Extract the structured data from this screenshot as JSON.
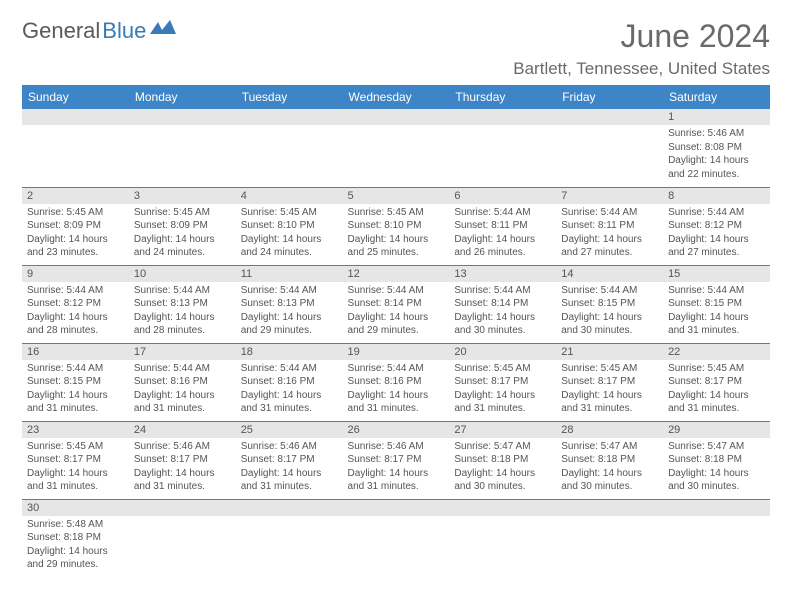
{
  "logo": {
    "text1": "General",
    "text2": "Blue"
  },
  "title": "June 2024",
  "location": "Bartlett, Tennessee, United States",
  "colors": {
    "header_bg": "#3d85c6",
    "header_text": "#ffffff",
    "day_num_bg": "#e6e6e6",
    "cell_border": "#3d85c6",
    "body_text": "#555555",
    "title_text": "#6a6a6a"
  },
  "fonts": {
    "title_size": 32,
    "location_size": 17,
    "weekday_size": 12,
    "daynum_size": 11,
    "body_size": 10
  },
  "weekdays": [
    "Sunday",
    "Monday",
    "Tuesday",
    "Wednesday",
    "Thursday",
    "Friday",
    "Saturday"
  ],
  "weeks": [
    [
      {
        "empty": true
      },
      {
        "empty": true
      },
      {
        "empty": true
      },
      {
        "empty": true
      },
      {
        "empty": true
      },
      {
        "empty": true
      },
      {
        "num": "1",
        "l1": "Sunrise: 5:46 AM",
        "l2": "Sunset: 8:08 PM",
        "l3": "Daylight: 14 hours",
        "l4": "and 22 minutes."
      }
    ],
    [
      {
        "num": "2",
        "l1": "Sunrise: 5:45 AM",
        "l2": "Sunset: 8:09 PM",
        "l3": "Daylight: 14 hours",
        "l4": "and 23 minutes."
      },
      {
        "num": "3",
        "l1": "Sunrise: 5:45 AM",
        "l2": "Sunset: 8:09 PM",
        "l3": "Daylight: 14 hours",
        "l4": "and 24 minutes."
      },
      {
        "num": "4",
        "l1": "Sunrise: 5:45 AM",
        "l2": "Sunset: 8:10 PM",
        "l3": "Daylight: 14 hours",
        "l4": "and 24 minutes."
      },
      {
        "num": "5",
        "l1": "Sunrise: 5:45 AM",
        "l2": "Sunset: 8:10 PM",
        "l3": "Daylight: 14 hours",
        "l4": "and 25 minutes."
      },
      {
        "num": "6",
        "l1": "Sunrise: 5:44 AM",
        "l2": "Sunset: 8:11 PM",
        "l3": "Daylight: 14 hours",
        "l4": "and 26 minutes."
      },
      {
        "num": "7",
        "l1": "Sunrise: 5:44 AM",
        "l2": "Sunset: 8:11 PM",
        "l3": "Daylight: 14 hours",
        "l4": "and 27 minutes."
      },
      {
        "num": "8",
        "l1": "Sunrise: 5:44 AM",
        "l2": "Sunset: 8:12 PM",
        "l3": "Daylight: 14 hours",
        "l4": "and 27 minutes."
      }
    ],
    [
      {
        "num": "9",
        "l1": "Sunrise: 5:44 AM",
        "l2": "Sunset: 8:12 PM",
        "l3": "Daylight: 14 hours",
        "l4": "and 28 minutes."
      },
      {
        "num": "10",
        "l1": "Sunrise: 5:44 AM",
        "l2": "Sunset: 8:13 PM",
        "l3": "Daylight: 14 hours",
        "l4": "and 28 minutes."
      },
      {
        "num": "11",
        "l1": "Sunrise: 5:44 AM",
        "l2": "Sunset: 8:13 PM",
        "l3": "Daylight: 14 hours",
        "l4": "and 29 minutes."
      },
      {
        "num": "12",
        "l1": "Sunrise: 5:44 AM",
        "l2": "Sunset: 8:14 PM",
        "l3": "Daylight: 14 hours",
        "l4": "and 29 minutes."
      },
      {
        "num": "13",
        "l1": "Sunrise: 5:44 AM",
        "l2": "Sunset: 8:14 PM",
        "l3": "Daylight: 14 hours",
        "l4": "and 30 minutes."
      },
      {
        "num": "14",
        "l1": "Sunrise: 5:44 AM",
        "l2": "Sunset: 8:15 PM",
        "l3": "Daylight: 14 hours",
        "l4": "and 30 minutes."
      },
      {
        "num": "15",
        "l1": "Sunrise: 5:44 AM",
        "l2": "Sunset: 8:15 PM",
        "l3": "Daylight: 14 hours",
        "l4": "and 31 minutes."
      }
    ],
    [
      {
        "num": "16",
        "l1": "Sunrise: 5:44 AM",
        "l2": "Sunset: 8:15 PM",
        "l3": "Daylight: 14 hours",
        "l4": "and 31 minutes."
      },
      {
        "num": "17",
        "l1": "Sunrise: 5:44 AM",
        "l2": "Sunset: 8:16 PM",
        "l3": "Daylight: 14 hours",
        "l4": "and 31 minutes."
      },
      {
        "num": "18",
        "l1": "Sunrise: 5:44 AM",
        "l2": "Sunset: 8:16 PM",
        "l3": "Daylight: 14 hours",
        "l4": "and 31 minutes."
      },
      {
        "num": "19",
        "l1": "Sunrise: 5:44 AM",
        "l2": "Sunset: 8:16 PM",
        "l3": "Daylight: 14 hours",
        "l4": "and 31 minutes."
      },
      {
        "num": "20",
        "l1": "Sunrise: 5:45 AM",
        "l2": "Sunset: 8:17 PM",
        "l3": "Daylight: 14 hours",
        "l4": "and 31 minutes."
      },
      {
        "num": "21",
        "l1": "Sunrise: 5:45 AM",
        "l2": "Sunset: 8:17 PM",
        "l3": "Daylight: 14 hours",
        "l4": "and 31 minutes."
      },
      {
        "num": "22",
        "l1": "Sunrise: 5:45 AM",
        "l2": "Sunset: 8:17 PM",
        "l3": "Daylight: 14 hours",
        "l4": "and 31 minutes."
      }
    ],
    [
      {
        "num": "23",
        "l1": "Sunrise: 5:45 AM",
        "l2": "Sunset: 8:17 PM",
        "l3": "Daylight: 14 hours",
        "l4": "and 31 minutes."
      },
      {
        "num": "24",
        "l1": "Sunrise: 5:46 AM",
        "l2": "Sunset: 8:17 PM",
        "l3": "Daylight: 14 hours",
        "l4": "and 31 minutes."
      },
      {
        "num": "25",
        "l1": "Sunrise: 5:46 AM",
        "l2": "Sunset: 8:17 PM",
        "l3": "Daylight: 14 hours",
        "l4": "and 31 minutes."
      },
      {
        "num": "26",
        "l1": "Sunrise: 5:46 AM",
        "l2": "Sunset: 8:17 PM",
        "l3": "Daylight: 14 hours",
        "l4": "and 31 minutes."
      },
      {
        "num": "27",
        "l1": "Sunrise: 5:47 AM",
        "l2": "Sunset: 8:18 PM",
        "l3": "Daylight: 14 hours",
        "l4": "and 30 minutes."
      },
      {
        "num": "28",
        "l1": "Sunrise: 5:47 AM",
        "l2": "Sunset: 8:18 PM",
        "l3": "Daylight: 14 hours",
        "l4": "and 30 minutes."
      },
      {
        "num": "29",
        "l1": "Sunrise: 5:47 AM",
        "l2": "Sunset: 8:18 PM",
        "l3": "Daylight: 14 hours",
        "l4": "and 30 minutes."
      }
    ],
    [
      {
        "num": "30",
        "l1": "Sunrise: 5:48 AM",
        "l2": "Sunset: 8:18 PM",
        "l3": "Daylight: 14 hours",
        "l4": "and 29 minutes."
      },
      {
        "empty": true
      },
      {
        "empty": true
      },
      {
        "empty": true
      },
      {
        "empty": true
      },
      {
        "empty": true
      },
      {
        "empty": true
      }
    ]
  ]
}
